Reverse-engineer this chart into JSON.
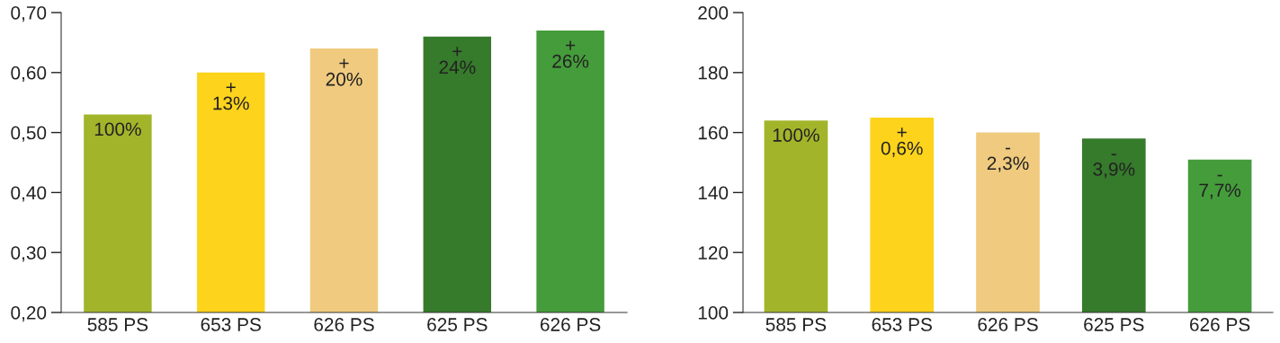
{
  "chart_data": [
    {
      "type": "bar",
      "categories": [
        "585 PS",
        "653 PS",
        "626 PS",
        "625 PS",
        "626 PS"
      ],
      "values": [
        0.53,
        0.6,
        0.64,
        0.66,
        0.67
      ],
      "colors": [
        "#a2b52a",
        "#fdd31c",
        "#f0cb7f",
        "#367a2b",
        "#459c3b"
      ],
      "annotations": [
        "100%",
        "+\n13%",
        "+\n20%",
        "+\n24%",
        "+\n26%"
      ],
      "ylim": [
        0.2,
        0.7
      ],
      "yticks": [
        {
          "value": 0.2,
          "label": "0,20"
        },
        {
          "value": 0.3,
          "label": "0,30"
        },
        {
          "value": 0.4,
          "label": "0,40"
        },
        {
          "value": 0.5,
          "label": "0,50"
        },
        {
          "value": 0.6,
          "label": "0,60"
        },
        {
          "value": 0.7,
          "label": "0,70"
        }
      ],
      "grid": false,
      "legend": false
    },
    {
      "type": "bar",
      "categories": [
        "585 PS",
        "653 PS",
        "626 PS",
        "625 PS",
        "626 PS"
      ],
      "values": [
        164,
        165,
        160,
        158,
        151
      ],
      "colors": [
        "#a2b52a",
        "#fdd31c",
        "#f0cb7f",
        "#367a2b",
        "#459c3b"
      ],
      "annotations": [
        "100%",
        "+\n0,6%",
        "-\n2,3%",
        "-\n3,9%",
        "-\n7,7%"
      ],
      "ylim": [
        100,
        200
      ],
      "yticks": [
        100,
        120,
        140,
        160,
        180,
        200
      ],
      "grid": false,
      "legend": false
    }
  ]
}
